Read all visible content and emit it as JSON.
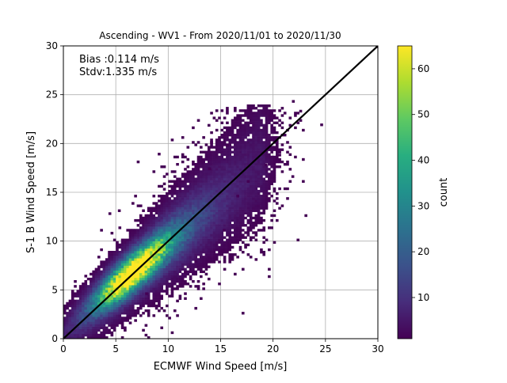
{
  "chart_data": {
    "type": "heatmap",
    "title": "Ascending - WV1 - From 2020/11/01 to 2020/11/30",
    "xlabel": "ECMWF Wind Speed [m/s]",
    "ylabel": "S-1 B Wind Speed [m/s]",
    "xlim": [
      0,
      30
    ],
    "ylim": [
      0,
      30
    ],
    "xticks": [
      "0",
      "5",
      "10",
      "15",
      "20",
      "25",
      "30"
    ],
    "yticks": [
      "0",
      "5",
      "10",
      "15",
      "20",
      "25",
      "30"
    ],
    "grid": true,
    "annotations": [
      "Bias :0.114 m/s",
      "Stdv:1.335 m/s"
    ],
    "reference_line": {
      "name": "",
      "x": [
        0,
        30
      ],
      "y": [
        0,
        30
      ],
      "color": "#000000"
    },
    "bin_size": 0.25,
    "colorbar": {
      "label": "count",
      "range": [
        1,
        65
      ],
      "ticks": [
        "10",
        "20",
        "30",
        "40",
        "50",
        "60"
      ],
      "colormap": "viridis"
    },
    "density_model": {
      "peak_count": 65,
      "peak_center": [
        6.5,
        6.7
      ],
      "spread_along_diagonal": 3.2,
      "spread_across_diagonal": 0.9,
      "secondary_center": [
        9,
        9
      ],
      "secondary_count": 25
    },
    "outliers": [
      [
        29.8,
        29.8
      ],
      [
        21.8,
        24.2
      ],
      [
        22.5,
        23.2
      ],
      [
        24.5,
        21.8
      ],
      [
        20.0,
        22.5
      ],
      [
        22.0,
        21.5
      ],
      [
        21.5,
        19.5
      ],
      [
        20.5,
        18.7
      ],
      [
        15.5,
        19.7
      ],
      [
        14.0,
        20.0
      ],
      [
        9.0,
        18.8
      ],
      [
        8.5,
        17.0
      ],
      [
        10.5,
        18.5
      ],
      [
        13.8,
        17.3
      ],
      [
        7.0,
        18.0
      ],
      [
        19.2,
        17.7
      ],
      [
        4.5,
        10.7
      ],
      [
        3.5,
        11.0
      ],
      [
        2.0,
        6.3
      ],
      [
        6.0,
        2.0
      ],
      [
        8.5,
        3.5
      ],
      [
        7.8,
        4.5
      ],
      [
        11.5,
        6.7
      ],
      [
        12.5,
        7.8
      ],
      [
        15.2,
        11.0
      ],
      [
        16.5,
        14.5
      ],
      [
        17.5,
        16.0
      ],
      [
        5.2,
        13.0
      ],
      [
        4.3,
        12.7
      ],
      [
        9.5,
        15.2
      ]
    ],
    "colors": {
      "line": "#000000",
      "grid": "#b0b0b0"
    }
  }
}
